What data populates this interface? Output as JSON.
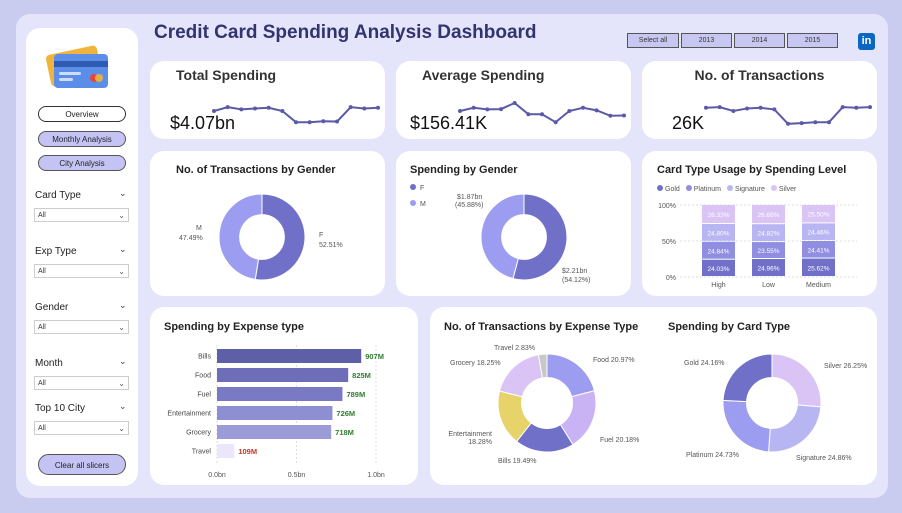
{
  "dashboard_title": "Credit Card Spending Analysis Dashboard",
  "year_filter": {
    "select_all": "Select all",
    "years": [
      "2013",
      "2014",
      "2015"
    ]
  },
  "linkedin_label": "in",
  "nav": {
    "overview": "Overview",
    "monthly": "Monthly Analysis",
    "city": "City Analysis"
  },
  "filters": [
    {
      "label": "Card Type",
      "value": "All"
    },
    {
      "label": "Exp Type",
      "value": "All"
    },
    {
      "label": "Gender",
      "value": "All"
    },
    {
      "label": "Month",
      "value": "All"
    },
    {
      "label": "Top 10 City",
      "value": "All"
    }
  ],
  "clear_button": "Clear all slicers",
  "colors": {
    "accent": "#7070c8",
    "dark": "#5a5aa8",
    "light": "#9c9cf0",
    "lavender": "#d9c4f5",
    "yellow": "#e6d36a",
    "value_green": "#2f7d32",
    "value_red": "#c0392b"
  },
  "kpis": [
    {
      "title": "Total Spending",
      "value": "$4.07bn",
      "trend": [
        0.5,
        0.62,
        0.55,
        0.58,
        0.6,
        0.5,
        0.15,
        0.15,
        0.18,
        0.17,
        0.62,
        0.58,
        0.6
      ]
    },
    {
      "title": "Average Spending",
      "value": "$156.41K",
      "trend": [
        0.5,
        0.6,
        0.55,
        0.56,
        0.75,
        0.4,
        0.4,
        0.15,
        0.5,
        0.6,
        0.52,
        0.35,
        0.36
      ]
    },
    {
      "title": "No. of Transactions",
      "value": "26K",
      "trend": [
        0.6,
        0.62,
        0.5,
        0.58,
        0.6,
        0.55,
        0.1,
        0.12,
        0.15,
        0.15,
        0.62,
        0.6,
        0.62
      ]
    }
  ],
  "tx_by_gender": {
    "title": "No. of Transactions by Gender",
    "slices": [
      {
        "name": "F",
        "label": "F",
        "pct_label": "52.51%",
        "value": 52.51,
        "color": "#7070c8"
      },
      {
        "name": "M",
        "label": "M",
        "pct_label": "47.49%",
        "value": 47.49,
        "color": "#9c9cf0"
      }
    ]
  },
  "spend_by_gender": {
    "title": "Spending by Gender",
    "legend": [
      "F",
      "M"
    ],
    "slices": [
      {
        "name": "F",
        "amount": "$2.21bn",
        "pct_label": "(54.12%)",
        "value": 54.12,
        "color": "#7070c8"
      },
      {
        "name": "M",
        "amount": "$1.87bn",
        "pct_label": "(45.88%)",
        "value": 45.88,
        "color": "#9c9cf0"
      }
    ]
  },
  "card_type_usage": {
    "title": "Card Type Usage by Spending Level",
    "legend": [
      "Gold",
      "Platinum",
      "Signature",
      "Silver"
    ],
    "colors": [
      "#7070c8",
      "#8f8ee0",
      "#b7b6f2",
      "#d9c4f5"
    ],
    "y_ticks": [
      "100%",
      "50%",
      "0%"
    ],
    "categories": [
      "High",
      "Low",
      "Medium"
    ],
    "series": [
      {
        "name": "Gold",
        "values": [
          24.03,
          24.96,
          25.62
        ],
        "labels": [
          "24.03%",
          "24.96%",
          "25.62%"
        ]
      },
      {
        "name": "Platinum",
        "values": [
          24.84,
          23.55,
          24.41
        ],
        "labels": [
          "24.84%",
          "23.55%",
          "24.41%"
        ]
      },
      {
        "name": "Signature",
        "values": [
          24.8,
          24.82,
          24.46
        ],
        "labels": [
          "24.80%",
          "24.82%",
          "24.46%"
        ]
      },
      {
        "name": "Silver",
        "values": [
          26.33,
          26.68,
          25.5
        ],
        "labels": [
          "26.33%",
          "26.68%",
          "25.50%"
        ]
      }
    ]
  },
  "spend_by_expense": {
    "title": "Spending by Expense type",
    "x_ticks": [
      "0.0bn",
      "0.5bn",
      "1.0bn"
    ],
    "bars": [
      {
        "name": "Bills",
        "value": 907,
        "label": "907M"
      },
      {
        "name": "Food",
        "value": 825,
        "label": "825M"
      },
      {
        "name": "Fuel",
        "value": 789,
        "label": "789M"
      },
      {
        "name": "Entertainment",
        "value": 726,
        "label": "726M"
      },
      {
        "name": "Grocery",
        "value": 718,
        "label": "718M"
      },
      {
        "name": "Travel",
        "value": 109,
        "label": "109M"
      }
    ]
  },
  "tx_by_expense": {
    "title": "No. of Transactions by Expense Type",
    "slices": [
      {
        "name": "Food",
        "label": "Food 20.97%",
        "value": 20.97,
        "color": "#9c9cf0"
      },
      {
        "name": "Fuel",
        "label": "Fuel 20.18%",
        "value": 20.18,
        "color": "#c9b3f5"
      },
      {
        "name": "Bills",
        "label": "Bills 19.49%",
        "value": 19.49,
        "color": "#7070c8"
      },
      {
        "name": "Entertainment",
        "label": "Entertainment 18.28%",
        "value": 18.28,
        "color": "#e6d36a"
      },
      {
        "name": "Grocery",
        "label": "Grocery 18.25%",
        "value": 18.25,
        "color": "#d9c4f5"
      },
      {
        "name": "Travel",
        "label": "Travel 2.83%",
        "value": 2.83,
        "color": "#c8c8c8"
      }
    ]
  },
  "spend_by_card": {
    "title": "Spending by Card Type",
    "slices": [
      {
        "name": "Silver",
        "label": "Silver 26.25%",
        "value": 26.25,
        "color": "#d9c4f5"
      },
      {
        "name": "Signature",
        "label": "Signature 24.86%",
        "value": 24.86,
        "color": "#b7b6f2"
      },
      {
        "name": "Platinum",
        "label": "Platinum 24.73%",
        "value": 24.73,
        "color": "#9c9cf0"
      },
      {
        "name": "Gold",
        "label": "Gold 24.16%",
        "value": 24.16,
        "color": "#7070c8"
      }
    ]
  }
}
